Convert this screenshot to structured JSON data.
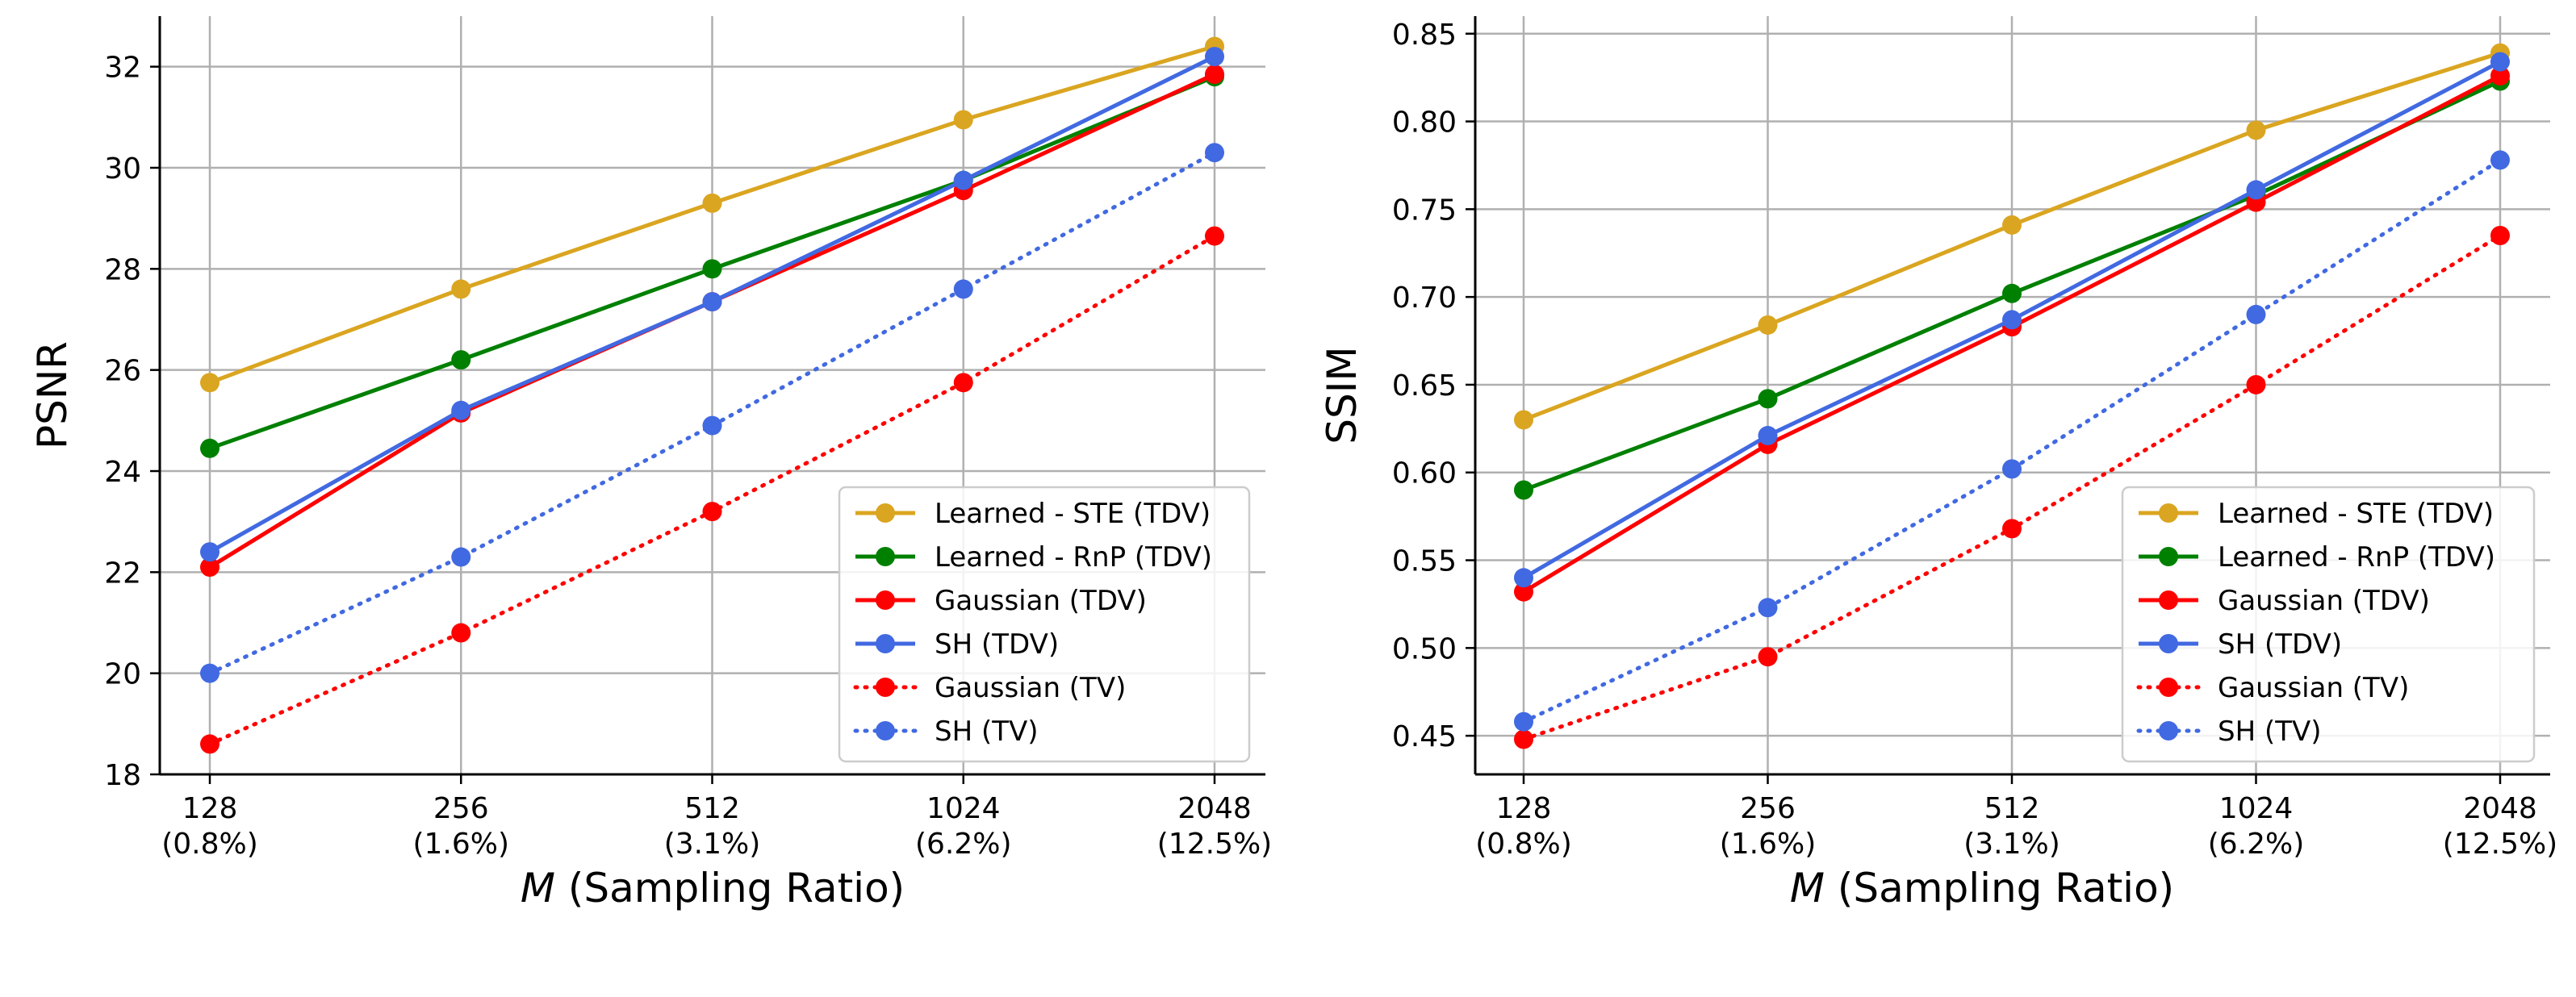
{
  "chart_data": [
    {
      "type": "line",
      "ylabel": "PSNR",
      "xlabel_var": "M",
      "xlabel_rest": " (Sampling Ratio)",
      "ylim": [
        18,
        33
      ],
      "yticks": [
        18,
        20,
        22,
        24,
        26,
        28,
        30,
        32
      ],
      "grid": true,
      "legend_position": "lower-right",
      "x": [
        {
          "value": "128",
          "ratio": "(0.8%)"
        },
        {
          "value": "256",
          "ratio": "(1.6%)"
        },
        {
          "value": "512",
          "ratio": "(3.1%)"
        },
        {
          "value": "1024",
          "ratio": "(6.2%)"
        },
        {
          "value": "2048",
          "ratio": "(12.5%)"
        }
      ],
      "series": [
        {
          "name": "Learned - STE (TDV)",
          "color": "#DAA520",
          "style": "solid",
          "values": [
            25.75,
            27.6,
            29.3,
            30.95,
            32.4
          ]
        },
        {
          "name": "Learned - RnP (TDV)",
          "color": "#008000",
          "style": "solid",
          "values": [
            24.45,
            26.2,
            28.0,
            29.75,
            31.8
          ]
        },
        {
          "name": "Gaussian (TDV)",
          "color": "#FF0000",
          "style": "solid",
          "values": [
            22.1,
            25.15,
            27.35,
            29.55,
            31.85
          ]
        },
        {
          "name": "SH (TDV)",
          "color": "#4169E1",
          "style": "solid",
          "values": [
            22.4,
            25.2,
            27.35,
            29.75,
            32.2
          ]
        },
        {
          "name": "Gaussian (TV)",
          "color": "#FF0000",
          "style": "dotted",
          "values": [
            18.6,
            20.8,
            23.2,
            25.75,
            28.65
          ]
        },
        {
          "name": "SH (TV)",
          "color": "#4169E1",
          "style": "dotted",
          "values": [
            20.0,
            22.3,
            24.9,
            27.6,
            30.3
          ]
        }
      ]
    },
    {
      "type": "line",
      "ylabel": "SSIM",
      "xlabel_var": "M",
      "xlabel_rest": " (Sampling Ratio)",
      "ylim": [
        0.428,
        0.86
      ],
      "yticks": [
        0.45,
        0.5,
        0.55,
        0.6,
        0.65,
        0.7,
        0.75,
        0.8,
        0.85
      ],
      "ytick_labels": [
        "0.45",
        "0.50",
        "0.55",
        "0.60",
        "0.65",
        "0.70",
        "0.75",
        "0.80",
        "0.85"
      ],
      "grid": true,
      "legend_position": "lower-right",
      "x": [
        {
          "value": "128",
          "ratio": "(0.8%)"
        },
        {
          "value": "256",
          "ratio": "(1.6%)"
        },
        {
          "value": "512",
          "ratio": "(3.1%)"
        },
        {
          "value": "1024",
          "ratio": "(6.2%)"
        },
        {
          "value": "2048",
          "ratio": "(12.5%)"
        }
      ],
      "series": [
        {
          "name": "Learned - STE (TDV)",
          "color": "#DAA520",
          "style": "solid",
          "values": [
            0.63,
            0.684,
            0.741,
            0.795,
            0.839
          ]
        },
        {
          "name": "Learned - RnP (TDV)",
          "color": "#008000",
          "style": "solid",
          "values": [
            0.59,
            0.642,
            0.702,
            0.758,
            0.823
          ]
        },
        {
          "name": "Gaussian (TDV)",
          "color": "#FF0000",
          "style": "solid",
          "values": [
            0.532,
            0.616,
            0.683,
            0.754,
            0.826
          ]
        },
        {
          "name": "SH (TDV)",
          "color": "#4169E1",
          "style": "solid",
          "values": [
            0.54,
            0.621,
            0.687,
            0.761,
            0.834
          ]
        },
        {
          "name": "Gaussian (TV)",
          "color": "#FF0000",
          "style": "dotted",
          "values": [
            0.448,
            0.495,
            0.568,
            0.65,
            0.735
          ]
        },
        {
          "name": "SH (TV)",
          "color": "#4169E1",
          "style": "dotted",
          "values": [
            0.458,
            0.523,
            0.602,
            0.69,
            0.778
          ]
        }
      ]
    }
  ]
}
